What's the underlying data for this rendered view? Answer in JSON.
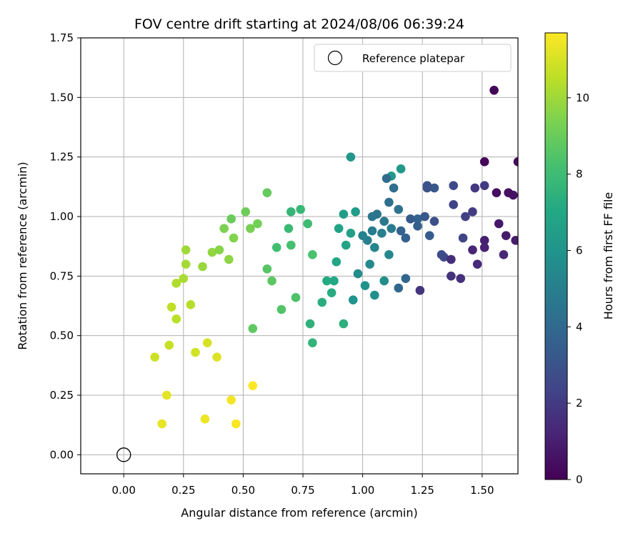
{
  "chart_data": {
    "type": "scatter",
    "title": "FOV centre drift starting at 2024/08/06 06:39:24",
    "xlabel": "Angular distance from reference (arcmin)",
    "ylabel": "Rotation from reference (arcmin)",
    "xlim": [
      -0.18,
      1.65
    ],
    "ylim": [
      -0.08,
      1.75
    ],
    "xticks": [
      "0.00",
      "0.25",
      "0.50",
      "0.75",
      "1.00",
      "1.25",
      "1.50"
    ],
    "yticks": [
      "0.00",
      "0.25",
      "0.50",
      "0.75",
      "1.00",
      "1.25",
      "1.50",
      "1.75"
    ],
    "grid": true,
    "legend": {
      "placement": "top-right",
      "entries": [
        "Reference platepar"
      ]
    },
    "reference_point": {
      "x": 0.0,
      "y": 0.0
    },
    "colorbar": {
      "label": "Hours from first FF file",
      "range": [
        0,
        11.7
      ],
      "ticks": [
        "0",
        "2",
        "4",
        "6",
        "8",
        "10"
      ],
      "colormap": "viridis"
    },
    "series": [
      {
        "values": [
          [
            1.55,
            1.53,
            0.1
          ],
          [
            1.51,
            1.23,
            0.2
          ],
          [
            1.65,
            1.23,
            0.3
          ],
          [
            1.56,
            1.1,
            0.4
          ],
          [
            1.61,
            1.1,
            0.5
          ],
          [
            1.63,
            1.09,
            0.6
          ],
          [
            1.57,
            0.97,
            0.7
          ],
          [
            1.6,
            0.92,
            0.8
          ],
          [
            1.64,
            0.9,
            0.9
          ],
          [
            1.51,
            0.9,
            1.0
          ],
          [
            1.51,
            0.87,
            1.1
          ],
          [
            1.46,
            0.86,
            1.2
          ],
          [
            1.59,
            0.84,
            1.3
          ],
          [
            1.48,
            0.8,
            1.4
          ],
          [
            1.37,
            0.82,
            1.5
          ],
          [
            1.41,
            0.74,
            1.6
          ],
          [
            1.37,
            0.75,
            1.7
          ],
          [
            1.24,
            0.69,
            1.8
          ],
          [
            1.47,
            1.12,
            1.9
          ],
          [
            1.51,
            1.13,
            2.0
          ],
          [
            1.46,
            1.02,
            2.1
          ],
          [
            1.43,
            1.0,
            2.2
          ],
          [
            1.38,
            1.05,
            2.3
          ],
          [
            1.42,
            0.91,
            2.4
          ],
          [
            1.38,
            1.13,
            2.5
          ],
          [
            1.34,
            0.83,
            2.6
          ],
          [
            1.33,
            0.84,
            2.7
          ],
          [
            1.3,
            0.98,
            2.8
          ],
          [
            1.27,
            1.13,
            2.9
          ],
          [
            1.27,
            1.12,
            3.0
          ],
          [
            1.3,
            1.12,
            3.1
          ],
          [
            1.26,
            1.0,
            3.2
          ],
          [
            1.2,
            0.99,
            3.3
          ],
          [
            1.28,
            0.92,
            3.4
          ],
          [
            1.23,
            0.96,
            3.5
          ],
          [
            1.18,
            0.91,
            3.6
          ],
          [
            1.16,
            0.94,
            3.7
          ],
          [
            1.23,
            0.99,
            3.8
          ],
          [
            1.18,
            0.74,
            3.9
          ],
          [
            1.15,
            0.7,
            4.0
          ],
          [
            1.1,
            1.16,
            4.1
          ],
          [
            1.13,
            1.12,
            4.2
          ],
          [
            1.11,
            1.06,
            4.3
          ],
          [
            1.15,
            1.03,
            4.4
          ],
          [
            1.06,
            1.01,
            4.5
          ],
          [
            1.04,
            1.0,
            4.6
          ],
          [
            1.09,
            0.98,
            4.7
          ],
          [
            1.12,
            0.95,
            4.8
          ],
          [
            1.04,
            0.94,
            4.9
          ],
          [
            1.08,
            0.93,
            5.0
          ],
          [
            1.02,
            0.9,
            5.1
          ],
          [
            1.0,
            0.92,
            5.2
          ],
          [
            1.05,
            0.87,
            5.3
          ],
          [
            1.11,
            0.84,
            5.4
          ],
          [
            1.03,
            0.8,
            5.5
          ],
          [
            0.98,
            0.76,
            5.6
          ],
          [
            1.09,
            0.73,
            5.7
          ],
          [
            1.05,
            0.67,
            5.8
          ],
          [
            1.01,
            0.71,
            5.9
          ],
          [
            0.96,
            0.65,
            6.0
          ],
          [
            0.95,
            1.25,
            6.1
          ],
          [
            1.16,
            1.2,
            6.2
          ],
          [
            1.12,
            1.17,
            6.3
          ],
          [
            0.97,
            1.02,
            6.4
          ],
          [
            0.92,
            1.01,
            6.5
          ],
          [
            0.95,
            0.93,
            6.6
          ],
          [
            0.9,
            0.95,
            6.7
          ],
          [
            0.93,
            0.88,
            6.8
          ],
          [
            0.89,
            0.81,
            6.9
          ],
          [
            0.88,
            0.73,
            7.0
          ],
          [
            0.85,
            0.73,
            7.1
          ],
          [
            0.87,
            0.68,
            7.2
          ],
          [
            0.83,
            0.64,
            7.3
          ],
          [
            0.92,
            0.55,
            7.4
          ],
          [
            0.78,
            0.55,
            7.5
          ],
          [
            0.79,
            0.47,
            7.6
          ],
          [
            0.7,
            1.02,
            7.7
          ],
          [
            0.74,
            1.03,
            7.8
          ],
          [
            0.69,
            0.95,
            7.9
          ],
          [
            0.77,
            0.97,
            8.0
          ],
          [
            0.64,
            0.87,
            8.1
          ],
          [
            0.7,
            0.88,
            8.2
          ],
          [
            0.79,
            0.84,
            8.3
          ],
          [
            0.72,
            0.66,
            8.4
          ],
          [
            0.66,
            0.61,
            8.5
          ],
          [
            0.6,
            0.78,
            8.6
          ],
          [
            0.62,
            0.73,
            8.7
          ],
          [
            0.54,
            0.53,
            8.8
          ],
          [
            0.6,
            1.1,
            8.9
          ],
          [
            0.45,
            0.99,
            9.0
          ],
          [
            0.51,
            1.02,
            9.1
          ],
          [
            0.56,
            0.97,
            9.2
          ],
          [
            0.53,
            0.95,
            9.3
          ],
          [
            0.42,
            0.95,
            9.4
          ],
          [
            0.46,
            0.91,
            9.5
          ],
          [
            0.4,
            0.86,
            9.6
          ],
          [
            0.44,
            0.82,
            9.7
          ],
          [
            0.37,
            0.85,
            9.8
          ],
          [
            0.33,
            0.79,
            9.9
          ],
          [
            0.26,
            0.86,
            10.0
          ],
          [
            0.26,
            0.8,
            10.1
          ],
          [
            0.25,
            0.74,
            10.2
          ],
          [
            0.22,
            0.72,
            10.3
          ],
          [
            0.28,
            0.63,
            10.4
          ],
          [
            0.22,
            0.57,
            10.5
          ],
          [
            0.2,
            0.62,
            10.6
          ],
          [
            0.19,
            0.46,
            10.7
          ],
          [
            0.13,
            0.41,
            10.8
          ],
          [
            0.3,
            0.43,
            10.9
          ],
          [
            0.35,
            0.47,
            11.0
          ],
          [
            0.39,
            0.41,
            11.1
          ],
          [
            0.18,
            0.25,
            11.2
          ],
          [
            0.16,
            0.13,
            11.3
          ],
          [
            0.34,
            0.15,
            11.4
          ],
          [
            0.45,
            0.23,
            11.5
          ],
          [
            0.47,
            0.13,
            11.6
          ],
          [
            0.54,
            0.29,
            11.7
          ]
        ]
      }
    ]
  }
}
